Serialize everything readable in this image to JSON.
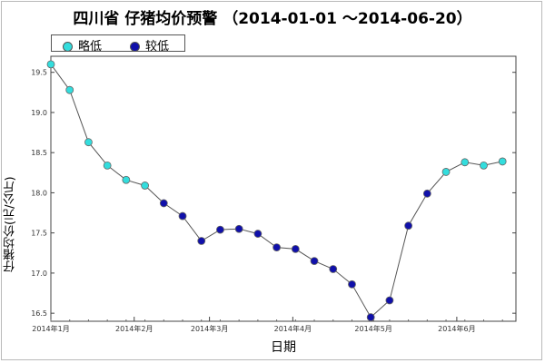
{
  "chart_data": {
    "type": "line",
    "title": "四川省 仔猪均价预警 （2014-01-01 ～2014-06-20）",
    "xlabel": "日期",
    "ylabel": "仔猪均价(元/公斤)",
    "ylim": [
      16.4,
      19.7
    ],
    "yticks": [
      "16.5",
      "17.0",
      "17.5",
      "18.0",
      "18.5",
      "19.0",
      "19.5"
    ],
    "xlim": [
      "2014-01-01",
      "2014-06-23"
    ],
    "xticks": [
      {
        "date": "2014-01-01",
        "label": "2014年1月"
      },
      {
        "date": "2014-02-01",
        "label": "2014年2月"
      },
      {
        "date": "2014-03-01",
        "label": "2014年3月"
      },
      {
        "date": "2014-04-01",
        "label": "2014年4月"
      },
      {
        "date": "2014-05-01",
        "label": "2014年5月"
      },
      {
        "date": "2014-06-01",
        "label": "2014年6月"
      }
    ],
    "legend": [
      {
        "label": "略低",
        "color": "#33dddd"
      },
      {
        "label": "较低",
        "color": "#1010aa"
      }
    ],
    "legend_position": "top-left",
    "grid": false,
    "series": [
      {
        "points": [
          {
            "x": "2014-01-01",
            "y": 19.6,
            "level": "略低"
          },
          {
            "x": "2014-01-08",
            "y": 19.28,
            "level": "略低"
          },
          {
            "x": "2014-01-15",
            "y": 18.63,
            "level": "略低"
          },
          {
            "x": "2014-01-22",
            "y": 18.34,
            "level": "略低"
          },
          {
            "x": "2014-01-29",
            "y": 18.16,
            "level": "略低"
          },
          {
            "x": "2014-02-05",
            "y": 18.09,
            "level": "略低"
          },
          {
            "x": "2014-02-12",
            "y": 17.87,
            "level": "较低"
          },
          {
            "x": "2014-02-19",
            "y": 17.71,
            "level": "较低"
          },
          {
            "x": "2014-02-26",
            "y": 17.4,
            "level": "较低"
          },
          {
            "x": "2014-03-05",
            "y": 17.54,
            "level": "较低"
          },
          {
            "x": "2014-03-12",
            "y": 17.55,
            "level": "较低"
          },
          {
            "x": "2014-03-19",
            "y": 17.49,
            "level": "较低"
          },
          {
            "x": "2014-03-26",
            "y": 17.32,
            "level": "较低"
          },
          {
            "x": "2014-04-02",
            "y": 17.3,
            "level": "较低"
          },
          {
            "x": "2014-04-09",
            "y": 17.15,
            "level": "较低"
          },
          {
            "x": "2014-04-16",
            "y": 17.05,
            "level": "较低"
          },
          {
            "x": "2014-04-23",
            "y": 16.86,
            "level": "较低"
          },
          {
            "x": "2014-04-30",
            "y": 16.45,
            "level": "较低"
          },
          {
            "x": "2014-05-07",
            "y": 16.66,
            "level": "较低"
          },
          {
            "x": "2014-05-14",
            "y": 17.59,
            "level": "较低"
          },
          {
            "x": "2014-05-21",
            "y": 17.99,
            "level": "较低"
          },
          {
            "x": "2014-05-28",
            "y": 18.26,
            "level": "略低"
          },
          {
            "x": "2014-06-04",
            "y": 18.38,
            "level": "略低"
          },
          {
            "x": "2014-06-11",
            "y": 18.34,
            "level": "略低"
          },
          {
            "x": "2014-06-18",
            "y": 18.39,
            "level": "略低"
          }
        ]
      }
    ]
  }
}
